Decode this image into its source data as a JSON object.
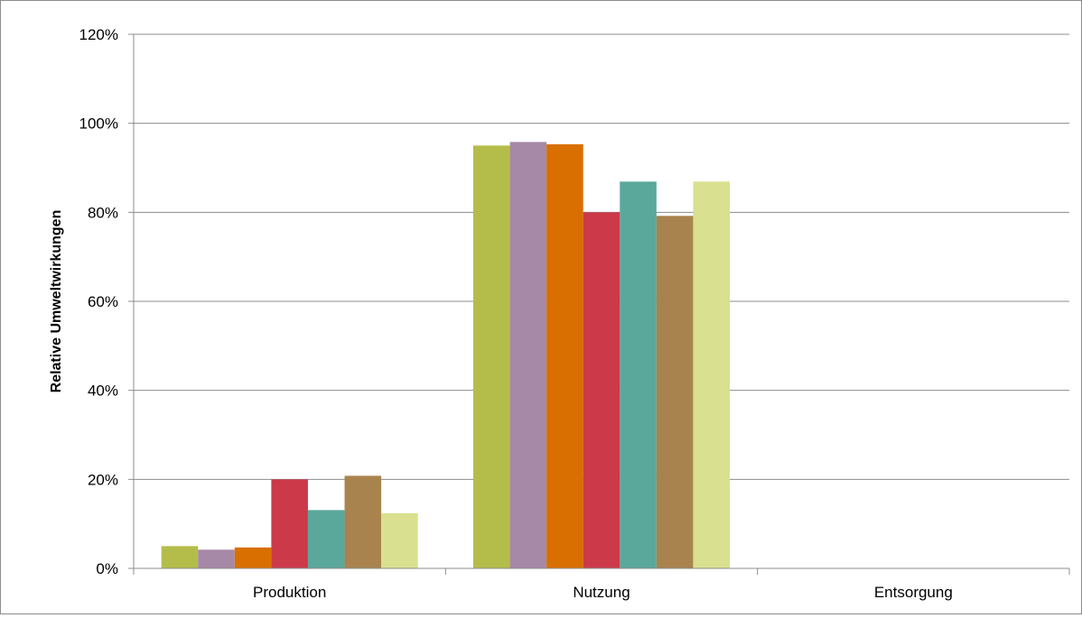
{
  "chart_data": {
    "type": "bar",
    "title": "",
    "xlabel": "",
    "ylabel": "Relative Umweltwirkungen",
    "categories": [
      "Produktion",
      "Nutzung",
      "Entsorgung"
    ],
    "ylim": [
      0,
      120
    ],
    "yticks": [
      0,
      20,
      40,
      60,
      80,
      100,
      120
    ],
    "ytick_labels": [
      "0%",
      "20%",
      "40%",
      "60%",
      "80%",
      "100%",
      "120%"
    ],
    "grid": true,
    "legend": "none",
    "series": [
      {
        "color": "#b5bd4a",
        "values": [
          5,
          95,
          0
        ]
      },
      {
        "color": "#a689a6",
        "values": [
          4.2,
          95.8,
          0
        ]
      },
      {
        "color": "#d96f00",
        "values": [
          4.7,
          95.3,
          0
        ]
      },
      {
        "color": "#cc3a4a",
        "values": [
          20,
          80,
          0
        ]
      },
      {
        "color": "#5aa89c",
        "values": [
          13.1,
          86.9,
          0
        ]
      },
      {
        "color": "#a9834e",
        "values": [
          20.8,
          79.2,
          0
        ]
      },
      {
        "color": "#d9e08f",
        "values": [
          12.4,
          86.9,
          0
        ]
      }
    ]
  }
}
